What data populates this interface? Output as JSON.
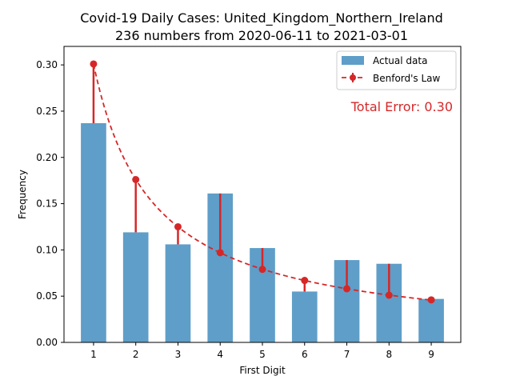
{
  "chart_data": {
    "type": "bar",
    "title_line1": "Covid-19 Daily Cases: United_Kingdom_Northern_Ireland",
    "title_line2": "236 numbers from 2020-06-11 to 2021-03-01",
    "xlabel": "First Digit",
    "ylabel": "Frequency",
    "categories": [
      "1",
      "2",
      "3",
      "4",
      "5",
      "6",
      "7",
      "8",
      "9"
    ],
    "ylim": [
      0,
      0.32
    ],
    "yticks": [
      0.0,
      0.05,
      0.1,
      0.15,
      0.2,
      0.25,
      0.3
    ],
    "ytick_labels": [
      "0.00",
      "0.05",
      "0.10",
      "0.15",
      "0.20",
      "0.25",
      "0.30"
    ],
    "grid": false,
    "legend_position": "top-right",
    "series": [
      {
        "name": "Actual data",
        "kind": "bar",
        "color": "#5f9ec8",
        "values": [
          0.237,
          0.119,
          0.106,
          0.161,
          0.102,
          0.055,
          0.089,
          0.085,
          0.047
        ]
      },
      {
        "name": "Benford's Law",
        "kind": "line-dashed-with-markers",
        "color": "#d62728",
        "values": [
          0.301,
          0.176,
          0.125,
          0.097,
          0.079,
          0.067,
          0.058,
          0.051,
          0.046
        ]
      }
    ],
    "annotation": {
      "text": "Total Error: 0.30",
      "color": "#d62728"
    }
  }
}
